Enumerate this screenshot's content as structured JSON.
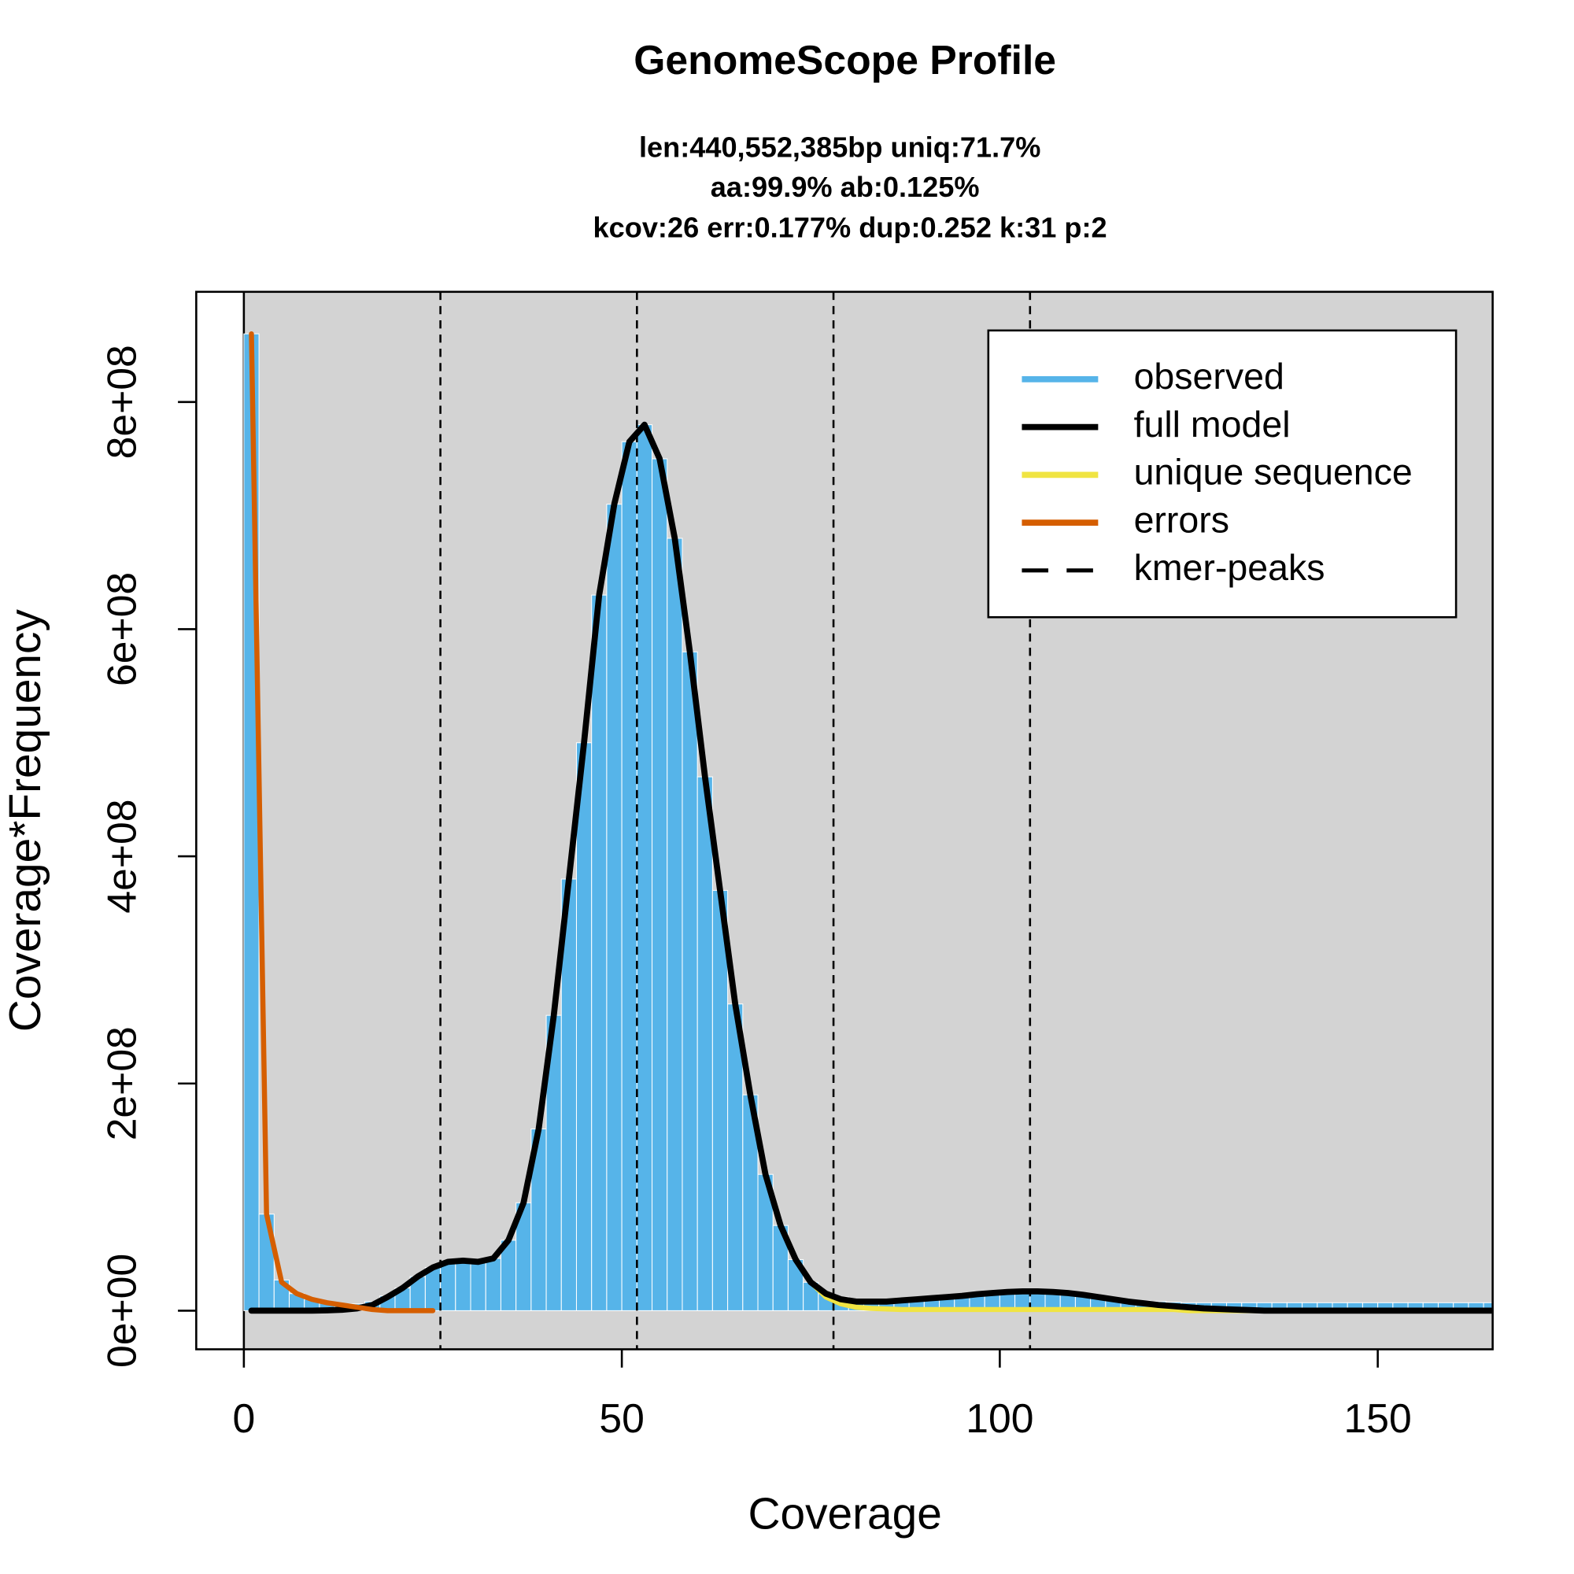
{
  "chart_data": {
    "type": "histogram-lines",
    "title": "GenomeScope Profile",
    "subtitle": [
      "len:440,552,385bp uniq:71.7%",
      "aa:99.9% ab:0.125%",
      "kcov:26 err:0.177%  dup:0.252  k:31 p:2"
    ],
    "x_label": "Coverage",
    "y_label": "Coverage*Frequency",
    "xlim": [
      -6.3,
      165.2
    ],
    "ylim": [
      -34000000,
      897000000
    ],
    "xticks": [
      0,
      50,
      100,
      150
    ],
    "yticks": [
      {
        "value": 0,
        "label": "0e+00"
      },
      {
        "value": 200000000,
        "label": "2e+08"
      },
      {
        "value": 400000000,
        "label": "4e+08"
      },
      {
        "value": 600000000,
        "label": "6e+08"
      },
      {
        "value": 800000000,
        "label": "8e+08"
      }
    ],
    "legend_position": "topright",
    "background": "#d3d3d3",
    "x": [
      1,
      3,
      5,
      7,
      9,
      11,
      13,
      15,
      17,
      19,
      21,
      23,
      25,
      27,
      29,
      31,
      33,
      35,
      37,
      39,
      41,
      43,
      45,
      47,
      49,
      51,
      53,
      55,
      57,
      59,
      61,
      63,
      65,
      67,
      69,
      71,
      73,
      75,
      77,
      79,
      81,
      83,
      85,
      87,
      89,
      91,
      93,
      95,
      97,
      99,
      101,
      103,
      105,
      107,
      109,
      111,
      113,
      115,
      117,
      119,
      121,
      123,
      125,
      127,
      129,
      131,
      133,
      135,
      137,
      139,
      141,
      143,
      145,
      147,
      149,
      151,
      153,
      155,
      157,
      159,
      161,
      163,
      165
    ],
    "series": [
      {
        "name": "observed",
        "color": "#56b4e9",
        "style": "bars",
        "values": [
          860000000.0,
          85000000.0,
          27000000.0,
          15000000.0,
          10000000.0,
          7000000.0,
          6000000.0,
          6000000.0,
          8000000.0,
          13000000.0,
          20000000.0,
          30000000.0,
          38000000.0,
          43000000.0,
          44000000.0,
          43000000.0,
          46000000.0,
          62000000.0,
          95000000.0,
          160000000.0,
          260000000.0,
          380000000.0,
          500000000.0,
          630000000.0,
          710000000.0,
          765000000.0,
          780000000.0,
          750000000.0,
          680000000.0,
          580000000.0,
          470000000.0,
          370000000.0,
          270000000.0,
          190000000.0,
          120000000.0,
          75000000.0,
          45000000.0,
          25000000.0,
          15000000.0,
          12000000.0,
          10000000.0,
          10000000.0,
          10000000.0,
          10000000.0,
          11000000.0,
          12000000.0,
          13000000.0,
          14000000.0,
          15000000.0,
          15500000.0,
          16000000.0,
          16000000.0,
          16000000.0,
          15500000.0,
          15000000.0,
          13500000.0,
          12000000.0,
          10500000.0,
          9500000.0,
          8500000.0,
          8000000.0,
          7500000.0,
          7000000.0,
          7000000.0,
          7000000.0,
          7000000.0,
          7000000.0,
          7000000.0,
          7000000.0,
          7000000.0,
          7000000.0,
          7000000.0,
          7000000.0,
          7000000.0,
          7000000.0,
          7000000.0,
          7000000.0,
          7000000.0,
          7000000.0,
          7000000.0,
          7000000.0,
          7000000.0,
          7000000.0
        ]
      },
      {
        "name": "unique sequence",
        "color": "#f0e442",
        "style": "line",
        "width": 5,
        "values": [
          0,
          0,
          0,
          0,
          0,
          300000.0,
          800000.0,
          2000000.0,
          5000000.0,
          12000000.0,
          20000000.0,
          30000000.0,
          38000000.0,
          43000000.0,
          44000000.0,
          43000000.0,
          46000000.0,
          62000000.0,
          95000000.0,
          160000000.0,
          260000000.0,
          380000000.0,
          500000000.0,
          630000000.0,
          710000000.0,
          765000000.0,
          780000000.0,
          750000000.0,
          680000000.0,
          580000000.0,
          470000000.0,
          370000000.0,
          270000000.0,
          190000000.0,
          120000000.0,
          75000000.0,
          45000000.0,
          25000000.0,
          12000000.0,
          6000000.0,
          3000000.0,
          2000000.0,
          1500000.0,
          1000000.0,
          1000000.0,
          1000000.0,
          1000000.0,
          1000000.0,
          1000000.0,
          1000000.0,
          1000000.0,
          1000000.0,
          1000000.0,
          1000000.0,
          1000000.0,
          1000000.0,
          1000000.0,
          1000000.0,
          1000000.0,
          1000000.0,
          1000000.0,
          1000000.0,
          0,
          0,
          0,
          0,
          0,
          0,
          0,
          0,
          0,
          0,
          0,
          0,
          0,
          0,
          0,
          0,
          0,
          0,
          0,
          0,
          0
        ]
      },
      {
        "name": "full model",
        "color": "#000000",
        "style": "line",
        "width": 6,
        "values": [
          0,
          0,
          0,
          0,
          0,
          300000.0,
          800000.0,
          2000000.0,
          5000000.0,
          12000000.0,
          20000000.0,
          30000000.0,
          38000000.0,
          43000000.0,
          44000000.0,
          43000000.0,
          46000000.0,
          62000000.0,
          95000000.0,
          160000000.0,
          260000000.0,
          380000000.0,
          500000000.0,
          630000000.0,
          710000000.0,
          765000000.0,
          780000000.0,
          750000000.0,
          680000000.0,
          580000000.0,
          470000000.0,
          370000000.0,
          270000000.0,
          190000000.0,
          120000000.0,
          75000000.0,
          45000000.0,
          25000000.0,
          15000000.0,
          10000000.0,
          8000000.0,
          8000000.0,
          8000000.0,
          9000000.0,
          10000000.0,
          11000000.0,
          12000000.0,
          13000000.0,
          14500000.0,
          15500000.0,
          16500000.0,
          17000000.0,
          17000000.0,
          16500000.0,
          15500000.0,
          14000000.0,
          12000000.0,
          10000000.0,
          8000000.0,
          6500000.0,
          5000000.0,
          4000000.0,
          3000000.0,
          2000000.0,
          1500000.0,
          1000000.0,
          500000.0,
          0,
          0,
          0,
          0,
          0,
          0,
          0,
          0,
          0,
          0,
          0,
          0,
          0,
          0,
          0,
          0
        ]
      },
      {
        "name": "errors",
        "color": "#d55e00",
        "style": "line",
        "width": 5,
        "values": [
          860000000.0,
          85000000.0,
          25000000.0,
          15000000.0,
          10000000.0,
          7000000.0,
          5000000.0,
          3000000.0,
          1000000.0,
          0,
          0,
          0,
          0,
          null,
          null,
          null,
          null,
          null,
          null,
          null,
          null,
          null,
          null,
          null,
          null,
          null,
          null,
          null,
          null,
          null,
          null,
          null,
          null,
          null,
          null,
          null,
          null,
          null,
          null,
          null,
          null,
          null,
          null,
          null,
          null,
          null,
          null,
          null,
          null,
          null,
          null,
          null,
          null,
          null,
          null,
          null,
          null,
          null,
          null,
          null,
          null,
          null,
          null,
          null,
          null,
          null,
          null,
          null,
          null,
          null,
          null,
          null,
          null,
          null,
          null,
          null,
          null,
          null,
          null,
          null,
          null,
          null,
          null
        ]
      }
    ],
    "kmer_peaks": {
      "name": "kmer-peaks",
      "color": "#000000",
      "x": [
        26,
        52,
        78,
        104
      ]
    }
  }
}
